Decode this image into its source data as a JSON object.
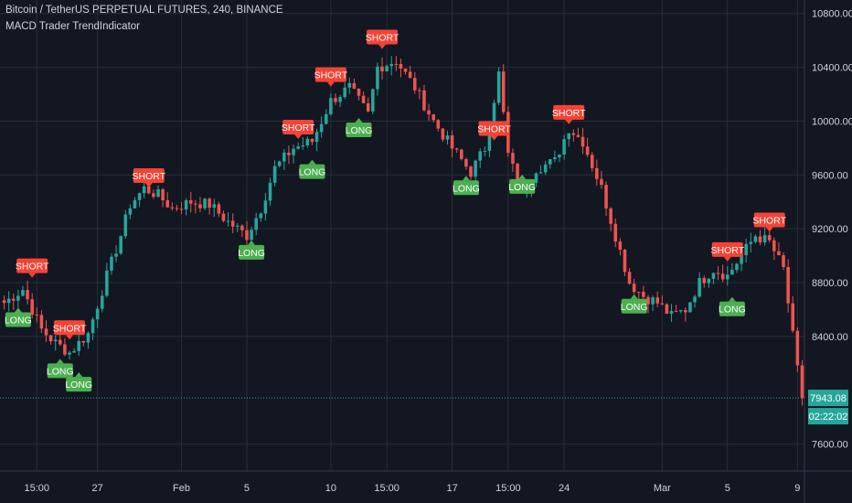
{
  "header": {
    "title": "Bitcoin / TetherUS PERPETUAL FUTURES, 240, BINANCE",
    "indicator": "MACD Trader TrendIndicator"
  },
  "colors": {
    "background": "#131722",
    "grid": "#2a2e39",
    "up": "#26a69a",
    "down": "#ef5350",
    "long": "#4caf50",
    "short": "#f44336",
    "text": "#d1d4dc",
    "tag": "#26a69a"
  },
  "chart_data": {
    "type": "candlestick",
    "symbol": "Bitcoin / TetherUS PERPETUAL FUTURES",
    "timeframe": "240",
    "exchange": "BINANCE",
    "ylim": [
      7400,
      10900
    ],
    "y_ticks": [
      "10800.00",
      "10400.00",
      "10000.00",
      "9600.00",
      "9200.00",
      "8800.00",
      "8400.00",
      "7600.00"
    ],
    "x_ticks": [
      "15:00",
      "27",
      "Feb",
      "5",
      "10",
      "15:00",
      "17",
      "15:00",
      "24",
      "Mar",
      "5",
      "9"
    ],
    "x_tick_bar_index": [
      7,
      20,
      38,
      52,
      70,
      82,
      96,
      108,
      120,
      141,
      155,
      170
    ],
    "close_points": [
      [
        0,
        8650
      ],
      [
        4,
        8750
      ],
      [
        8,
        8450
      ],
      [
        11,
        8350
      ],
      [
        14,
        8280
      ],
      [
        18,
        8420
      ],
      [
        22,
        8850
      ],
      [
        25,
        9150
      ],
      [
        27,
        9380
      ],
      [
        30,
        9500
      ],
      [
        33,
        9450
      ],
      [
        36,
        9350
      ],
      [
        40,
        9400
      ],
      [
        44,
        9380
      ],
      [
        48,
        9250
      ],
      [
        52,
        9150
      ],
      [
        55,
        9350
      ],
      [
        58,
        9650
      ],
      [
        62,
        9800
      ],
      [
        66,
        9850
      ],
      [
        70,
        10150
      ],
      [
        74,
        10250
      ],
      [
        78,
        10050
      ],
      [
        80,
        10400
      ],
      [
        84,
        10450
      ],
      [
        88,
        10250
      ],
      [
        92,
        10000
      ],
      [
        96,
        9800
      ],
      [
        100,
        9620
      ],
      [
        103,
        9800
      ],
      [
        106,
        10350
      ],
      [
        108,
        9750
      ],
      [
        111,
        9450
      ],
      [
        114,
        9650
      ],
      [
        118,
        9700
      ],
      [
        121,
        9950
      ],
      [
        124,
        9850
      ],
      [
        128,
        9500
      ],
      [
        131,
        9150
      ],
      [
        134,
        8800
      ],
      [
        137,
        8700
      ],
      [
        140,
        8650
      ],
      [
        143,
        8550
      ],
      [
        146,
        8600
      ],
      [
        149,
        8800
      ],
      [
        152,
        8900
      ],
      [
        155,
        8850
      ],
      [
        158,
        9000
      ],
      [
        161,
        9150
      ],
      [
        164,
        9100
      ],
      [
        167,
        8900
      ],
      [
        169,
        8400
      ],
      [
        171,
        7900
      ]
    ],
    "bar_count": 172,
    "signals": [
      {
        "type": "SHORT",
        "bar": 6,
        "price": 8830
      },
      {
        "type": "LONG",
        "bar": 3,
        "price": 8620
      },
      {
        "type": "SHORT",
        "bar": 14,
        "price": 8370
      },
      {
        "type": "LONG",
        "bar": 12,
        "price": 8240
      },
      {
        "type": "LONG",
        "bar": 16,
        "price": 8140
      },
      {
        "type": "SHORT",
        "bar": 31,
        "price": 9500
      },
      {
        "type": "LONG",
        "bar": 53,
        "price": 9120
      },
      {
        "type": "SHORT",
        "bar": 63,
        "price": 9860
      },
      {
        "type": "LONG",
        "bar": 66,
        "price": 9720
      },
      {
        "type": "SHORT",
        "bar": 70,
        "price": 10250
      },
      {
        "type": "LONG",
        "bar": 76,
        "price": 10030
      },
      {
        "type": "SHORT",
        "bar": 81,
        "price": 10530
      },
      {
        "type": "SHORT",
        "bar": 105,
        "price": 9850
      },
      {
        "type": "LONG",
        "bar": 99,
        "price": 9600
      },
      {
        "type": "LONG",
        "bar": 111,
        "price": 9610
      },
      {
        "type": "SHORT",
        "bar": 121,
        "price": 9970
      },
      {
        "type": "LONG",
        "bar": 135,
        "price": 8720
      },
      {
        "type": "SHORT",
        "bar": 155,
        "price": 8950
      },
      {
        "type": "LONG",
        "bar": 156,
        "price": 8700
      },
      {
        "type": "SHORT",
        "bar": 164,
        "price": 9170
      }
    ],
    "last_price": "7943.08",
    "countdown": "02:22:02",
    "last_price_value": 7943.08
  }
}
